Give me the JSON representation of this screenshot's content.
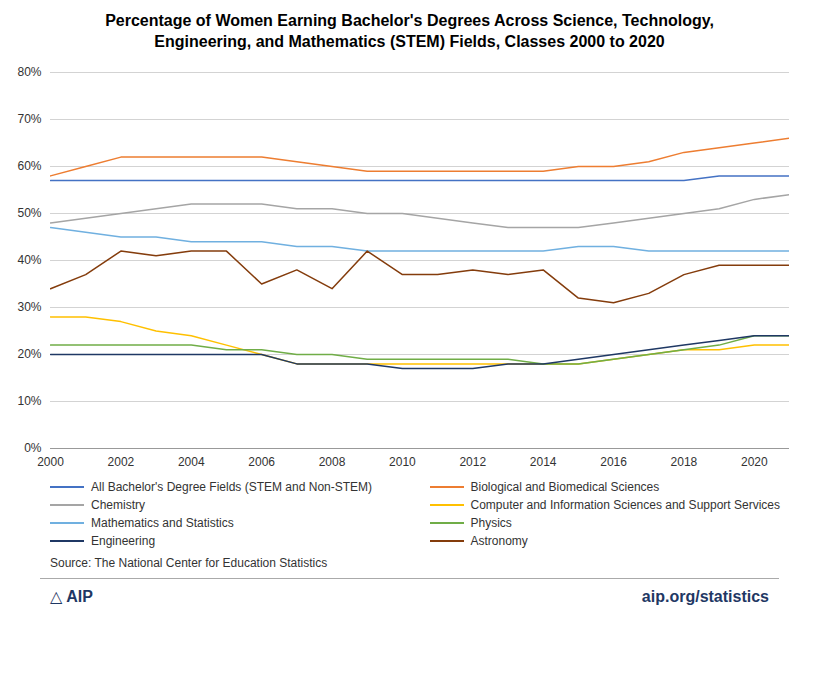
{
  "chart_data": {
    "type": "line",
    "title": "Percentage of Women Earning Bachelor's Degrees Across Science, Technology,\nEngineering, and Mathematics (STEM) Fields, Classes 2000 to 2020",
    "x": [
      2000,
      2001,
      2002,
      2003,
      2004,
      2005,
      2006,
      2007,
      2008,
      2009,
      2010,
      2011,
      2012,
      2013,
      2014,
      2015,
      2016,
      2017,
      2018,
      2019,
      2020,
      2021
    ],
    "series": [
      {
        "name": "All Bachelor's Degree Fields (STEM and Non-STEM)",
        "color": "#4472C4",
        "values": [
          57,
          57,
          57,
          57,
          57,
          57,
          57,
          57,
          57,
          57,
          57,
          57,
          57,
          57,
          57,
          57,
          57,
          57,
          57,
          58,
          58,
          58
        ]
      },
      {
        "name": "Biological and Biomedical Sciences",
        "color": "#ED7D31",
        "values": [
          58,
          60,
          62,
          62,
          62,
          62,
          62,
          61,
          60,
          59,
          59,
          59,
          59,
          59,
          59,
          60,
          60,
          61,
          63,
          64,
          65,
          66
        ]
      },
      {
        "name": "Chemistry",
        "color": "#A5A5A5",
        "values": [
          48,
          49,
          50,
          51,
          52,
          52,
          52,
          51,
          51,
          50,
          50,
          49,
          48,
          47,
          47,
          47,
          48,
          49,
          50,
          51,
          53,
          54
        ]
      },
      {
        "name": "Computer and Information Sciences and Support Services",
        "color": "#FFC000",
        "values": [
          28,
          28,
          27,
          25,
          24,
          22,
          20,
          18,
          18,
          18,
          18,
          18,
          18,
          18,
          18,
          18,
          19,
          20,
          21,
          21,
          22,
          22
        ]
      },
      {
        "name": "Mathematics and Statistics",
        "color": "#70B0E0",
        "values": [
          47,
          46,
          45,
          45,
          44,
          44,
          44,
          43,
          43,
          42,
          42,
          42,
          42,
          42,
          42,
          43,
          43,
          42,
          42,
          42,
          42,
          42
        ]
      },
      {
        "name": "Physics",
        "color": "#70AD47",
        "values": [
          22,
          22,
          22,
          22,
          22,
          21,
          21,
          20,
          20,
          19,
          19,
          19,
          19,
          19,
          18,
          18,
          19,
          20,
          21,
          22,
          24,
          24
        ]
      },
      {
        "name": "Engineering",
        "color": "#1F3864",
        "values": [
          20,
          20,
          20,
          20,
          20,
          20,
          20,
          18,
          18,
          18,
          17,
          17,
          17,
          18,
          18,
          19,
          20,
          21,
          22,
          23,
          24,
          24
        ]
      },
      {
        "name": "Astronomy",
        "color": "#843C0C",
        "values": [
          34,
          37,
          42,
          41,
          42,
          42,
          35,
          38,
          34,
          42,
          37,
          37,
          38,
          37,
          38,
          32,
          31,
          33,
          37,
          39,
          39,
          39
        ]
      }
    ],
    "xlim": [
      2000,
      2021
    ],
    "xticks": [
      2000,
      2002,
      2004,
      2006,
      2008,
      2010,
      2012,
      2014,
      2016,
      2018,
      2020
    ],
    "ylim": [
      0,
      80
    ],
    "yticks": [
      {
        "value": 0,
        "label": "0%"
      },
      {
        "value": 10,
        "label": "10%"
      },
      {
        "value": 20,
        "label": "20%"
      },
      {
        "value": 30,
        "label": "30%"
      },
      {
        "value": 40,
        "label": "40%"
      },
      {
        "value": 50,
        "label": "50%"
      },
      {
        "value": 60,
        "label": "60%"
      },
      {
        "value": 70,
        "label": "70%"
      },
      {
        "value": 80,
        "label": "80%"
      }
    ],
    "grid": true,
    "legend": "bottom",
    "annotations": [
      "Source: The National Center for Education Statistics",
      "△ AIP",
      "aip.org/statistics"
    ]
  }
}
